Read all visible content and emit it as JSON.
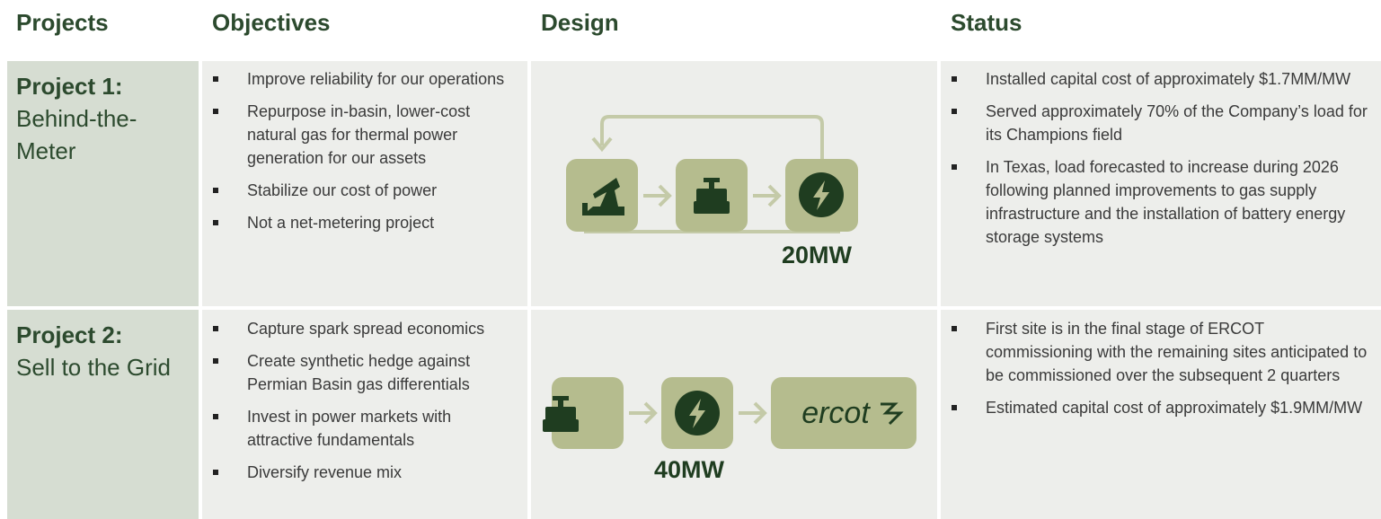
{
  "headers": [
    "Projects",
    "Objectives",
    "Design",
    "Status"
  ],
  "rows": [
    {
      "project_number": "Project 1:",
      "project_name": "Behind-the-Meter",
      "objectives": [
        "Improve reliability for our operations",
        "Repurpose in-basin, lower-cost natural gas for thermal power generation for our assets",
        "Stabilize our cost of power",
        "Not a net-metering project"
      ],
      "design_capacity": "20MW",
      "status": [
        "Installed capital cost of approximately $1.7MM/MW",
        "Served approximately 70% of the Company’s load for its Champions field",
        "In Texas, load forecasted to increase during 2026 following planned improvements to gas supply infrastructure and the installation of battery energy storage systems"
      ]
    },
    {
      "project_number": "Project 2:",
      "project_name": "Sell to the Grid",
      "objectives": [
        "Capture spark spread economics",
        "Create synthetic hedge against Permian Basin gas differentials",
        "Invest in power markets with attractive fundamentals",
        "Diversify revenue mix"
      ],
      "design_capacity": "40MW",
      "design_logo": "ercot",
      "status": [
        "First site is in the final stage of ERCOT commissioning with the remaining sites anticipated to be commissioned over the subsequent 2 quarters",
        "Estimated capital cost of approximately $1.9MM/MW"
      ]
    }
  ]
}
